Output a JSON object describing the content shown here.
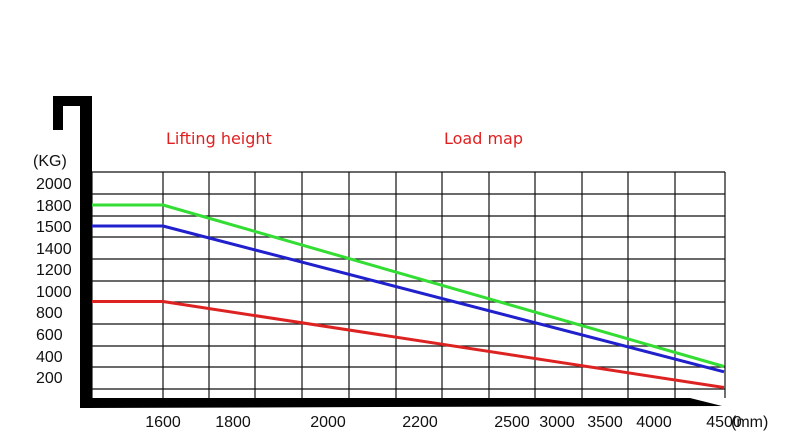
{
  "chart_data": {
    "type": "line",
    "title": "",
    "annotations": [
      "Lifting height",
      "Load map"
    ],
    "ylabel": "(KG)",
    "xlabel": "(mm)",
    "y_ticks": [
      "2000",
      "1800",
      "1500",
      "1400",
      "1200",
      "1000",
      "800",
      "600",
      "400",
      "200"
    ],
    "x_ticks": [
      "1600",
      "1800",
      "2000",
      "2200",
      "2500",
      "3000",
      "3500",
      "4000",
      "4500"
    ],
    "grid": true,
    "series": [
      {
        "name": "green",
        "color": "#33dd33",
        "points": [
          {
            "x": "start",
            "y": 1800
          },
          {
            "x": "1600",
            "y": 1800
          },
          {
            "x": "4500",
            "y": 300
          }
        ]
      },
      {
        "name": "blue",
        "color": "#2020cc",
        "points": [
          {
            "x": "start",
            "y": 1500
          },
          {
            "x": "1600",
            "y": 1500
          },
          {
            "x": "4500",
            "y": 250
          }
        ]
      },
      {
        "name": "red",
        "color": "#dd2222",
        "points": [
          {
            "x": "start",
            "y": 900
          },
          {
            "x": "1600",
            "y": 900
          },
          {
            "x": "4500",
            "y": 100
          }
        ]
      }
    ]
  }
}
